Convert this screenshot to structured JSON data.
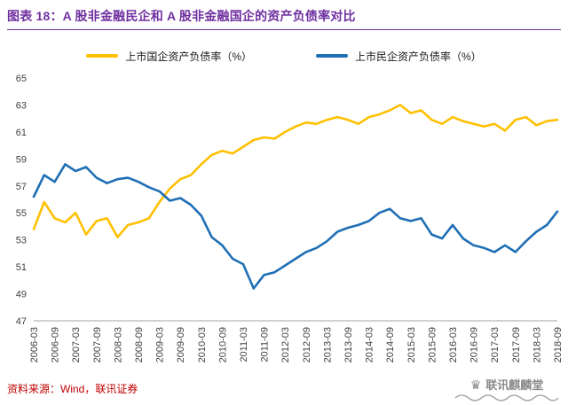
{
  "header": {
    "title": "图表 18：A 股非金融民企和 A 股非金融国企的资产负债率对比"
  },
  "footer": {
    "source": "资料来源：Wind，联讯证券",
    "crown_icon": "♛",
    "watermark": "联讯麒麟堂"
  },
  "colors": {
    "title_purple": "#7030A0",
    "source_red": "#C00000",
    "soe_yellow": "#FFC000",
    "private_blue": "#1F6FB5",
    "axis_gray": "#A6A6A6"
  },
  "chart_data": {
    "type": "line",
    "title": "图表 18：A 股非金融民企和 A 股非金融国企的资产负债率对比",
    "xlabel": "",
    "ylabel": "",
    "ylim": [
      47,
      65
    ],
    "ytick_step": 2,
    "grid": false,
    "legend_position": "top",
    "x_label_rotation": -90,
    "x_tick_every": 2,
    "categories": [
      "2006-03",
      "2006-06",
      "2006-09",
      "2006-12",
      "2007-03",
      "2007-06",
      "2007-09",
      "2007-12",
      "2008-03",
      "2008-06",
      "2008-09",
      "2008-12",
      "2009-03",
      "2009-06",
      "2009-09",
      "2009-12",
      "2010-03",
      "2010-06",
      "2010-09",
      "2010-12",
      "2011-03",
      "2011-06",
      "2011-09",
      "2011-12",
      "2012-03",
      "2012-06",
      "2012-09",
      "2012-12",
      "2013-03",
      "2013-06",
      "2013-09",
      "2013-12",
      "2014-03",
      "2014-06",
      "2014-09",
      "2014-12",
      "2015-03",
      "2015-06",
      "2015-09",
      "2015-12",
      "2016-03",
      "2016-06",
      "2016-09",
      "2016-12",
      "2017-03",
      "2017-06",
      "2017-09",
      "2017-12",
      "2018-03",
      "2018-06",
      "2018-09"
    ],
    "series": [
      {
        "key": "soe",
        "name": "上市国企资产负债率（%）",
        "color": "#FFC000",
        "values": [
          53.8,
          55.8,
          54.6,
          54.3,
          55.0,
          53.4,
          54.4,
          54.6,
          53.2,
          54.1,
          54.3,
          54.6,
          55.8,
          56.8,
          57.5,
          57.8,
          58.6,
          59.3,
          59.6,
          59.4,
          59.9,
          60.4,
          60.6,
          60.5,
          61.0,
          61.4,
          61.7,
          61.6,
          61.9,
          62.1,
          61.9,
          61.6,
          62.1,
          62.3,
          62.6,
          63.0,
          62.4,
          62.6,
          61.9,
          61.6,
          62.1,
          61.8,
          61.6,
          61.4,
          61.6,
          61.1,
          61.9,
          62.1,
          61.5,
          61.8,
          61.9
        ]
      },
      {
        "key": "private",
        "name": "上市民企资产负债率（%）",
        "color": "#1F6FB5",
        "values": [
          56.2,
          57.8,
          57.3,
          58.6,
          58.1,
          58.4,
          57.6,
          57.2,
          57.5,
          57.6,
          57.3,
          56.9,
          56.6,
          55.9,
          56.1,
          55.6,
          54.8,
          53.2,
          52.6,
          51.6,
          51.2,
          49.4,
          50.4,
          50.6,
          51.1,
          51.6,
          52.1,
          52.4,
          52.9,
          53.6,
          53.9,
          54.1,
          54.4,
          55.0,
          55.3,
          54.6,
          54.4,
          54.6,
          53.4,
          53.1,
          54.1,
          53.1,
          52.6,
          52.4,
          52.1,
          52.6,
          52.1,
          52.9,
          53.6,
          54.1,
          55.1
        ]
      }
    ]
  }
}
